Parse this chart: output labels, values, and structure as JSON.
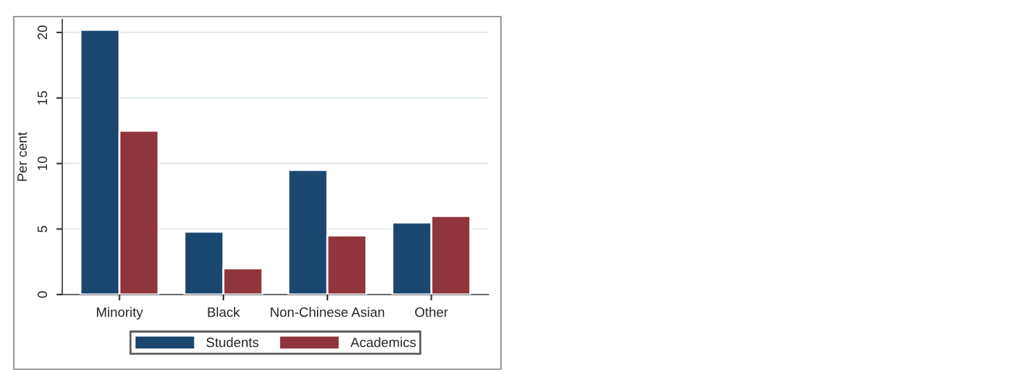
{
  "chart_data": {
    "type": "bar",
    "ylabel": "Per cent",
    "categories": [
      "Minority",
      "Black",
      "Non-Chinese Asian",
      "Other"
    ],
    "series": [
      {
        "name": "Students",
        "color": "#1a476f",
        "values": [
          20.2,
          4.8,
          9.5,
          5.5
        ]
      },
      {
        "name": "Academics",
        "color": "#90353b",
        "values": [
          12.5,
          2.0,
          4.5,
          6.0
        ]
      }
    ],
    "ylim": [
      0,
      21
    ],
    "yticks": [
      0,
      5,
      10,
      15,
      20
    ],
    "grid": "y",
    "legend": "bottom"
  }
}
